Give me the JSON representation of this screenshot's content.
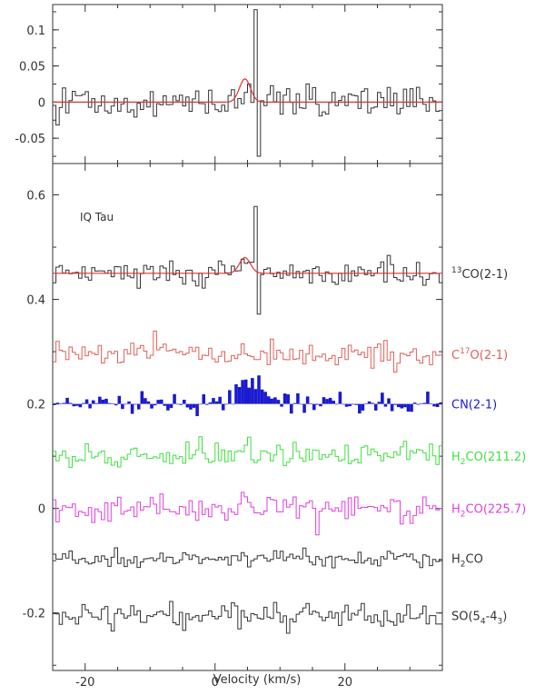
{
  "chart_data": [
    {
      "type": "line",
      "panel": "top",
      "xlim": [
        -25,
        35
      ],
      "ylim": [
        -0.085,
        0.135
      ],
      "yticks": [
        -0.05,
        0,
        0.05,
        0.1
      ],
      "ytick_labels": [
        "-0.05",
        "0",
        "0.05",
        "0.1"
      ],
      "series": [
        {
          "color": "#333333",
          "style": "histogram",
          "noise_sigma": 0.012,
          "features": [
            {
              "x": 4.6,
              "width": 1.2,
              "amp": 0.02
            },
            {
              "x": 6.3,
              "y": 0.128
            },
            {
              "x": 6.9,
              "y": -0.075
            }
          ]
        },
        {
          "color": "#e03030",
          "style": "fit",
          "gaussian": {
            "center": 4.6,
            "fwhm": 2.0,
            "amp": 0.032
          }
        }
      ]
    },
    {
      "type": "line",
      "panel": "bottom",
      "xlim": [
        -25,
        35
      ],
      "ylim": [
        -0.31,
        0.66
      ],
      "xticks": [
        -20,
        0,
        20
      ],
      "xtick_labels": [
        "-20",
        "0",
        "20"
      ],
      "yticks": [
        -0.2,
        0,
        0.2,
        0.4,
        0.6
      ],
      "ytick_labels": [
        "-0.2",
        "0",
        "0.2",
        "0.4",
        "0.6"
      ],
      "xlabel": "Velocity (km/s)",
      "annotation": "IQ Tau",
      "series": [
        {
          "name": "13CO(2-1)",
          "label": {
            "sup_prefix": "13",
            "text": "CO(2-1)"
          },
          "color": "#333333",
          "style": "histogram",
          "offset": 0.45,
          "noise_sigma": 0.012,
          "features": [
            {
              "x": 4.6,
              "width": 1.2,
              "amp": 0.025
            },
            {
              "x": 6.3,
              "y": 0.578
            },
            {
              "x": 6.9,
              "y": 0.372
            }
          ],
          "fit": {
            "color": "#e03030",
            "gaussian": {
              "center": 4.6,
              "fwhm": 2.0,
              "amp": 0.03
            }
          }
        },
        {
          "name": "C17O(2-1)",
          "label": {
            "pre": "C",
            "sup": "17",
            "post": "O(2-1)"
          },
          "color": "#e0605a",
          "style": "histogram",
          "offset": 0.295,
          "noise_sigma": 0.013
        },
        {
          "name": "CN(2-1)",
          "label": {
            "text": "CN(2-1)"
          },
          "color": "#1a1ad0",
          "style": "bars",
          "offset": 0.2,
          "noise_sigma": 0.011,
          "features": [
            {
              "x": 5.8,
              "width": 3.2,
              "amp": 0.04
            }
          ]
        },
        {
          "name": "H2CO(211.2)",
          "label": {
            "pre": "H",
            "sub": "2",
            "post": "CO(211.2)"
          },
          "color": "#40e040",
          "style": "histogram",
          "offset": 0.1,
          "noise_sigma": 0.014
        },
        {
          "name": "H2CO(225.7)",
          "label": {
            "pre": "H",
            "sub": "2",
            "post": "CO(225.7)"
          },
          "color": "#e040e0",
          "style": "histogram",
          "offset": 0.0,
          "noise_sigma": 0.015
        },
        {
          "name": "H2CO",
          "label": {
            "pre": "H",
            "sub": "2",
            "post": "CO"
          },
          "color": "#333333",
          "style": "histogram",
          "offset": -0.095,
          "noise_sigma": 0.008
        },
        {
          "name": "SO(54-43)",
          "label": {
            "pre": "SO(5",
            "sub": "4",
            "mid": "-4",
            "sub2": "3",
            "post": ")"
          },
          "color": "#333333",
          "style": "histogram",
          "offset": -0.205,
          "noise_sigma": 0.012
        }
      ]
    }
  ],
  "colors": {
    "axis": "#333333",
    "fit": "#e03030"
  }
}
